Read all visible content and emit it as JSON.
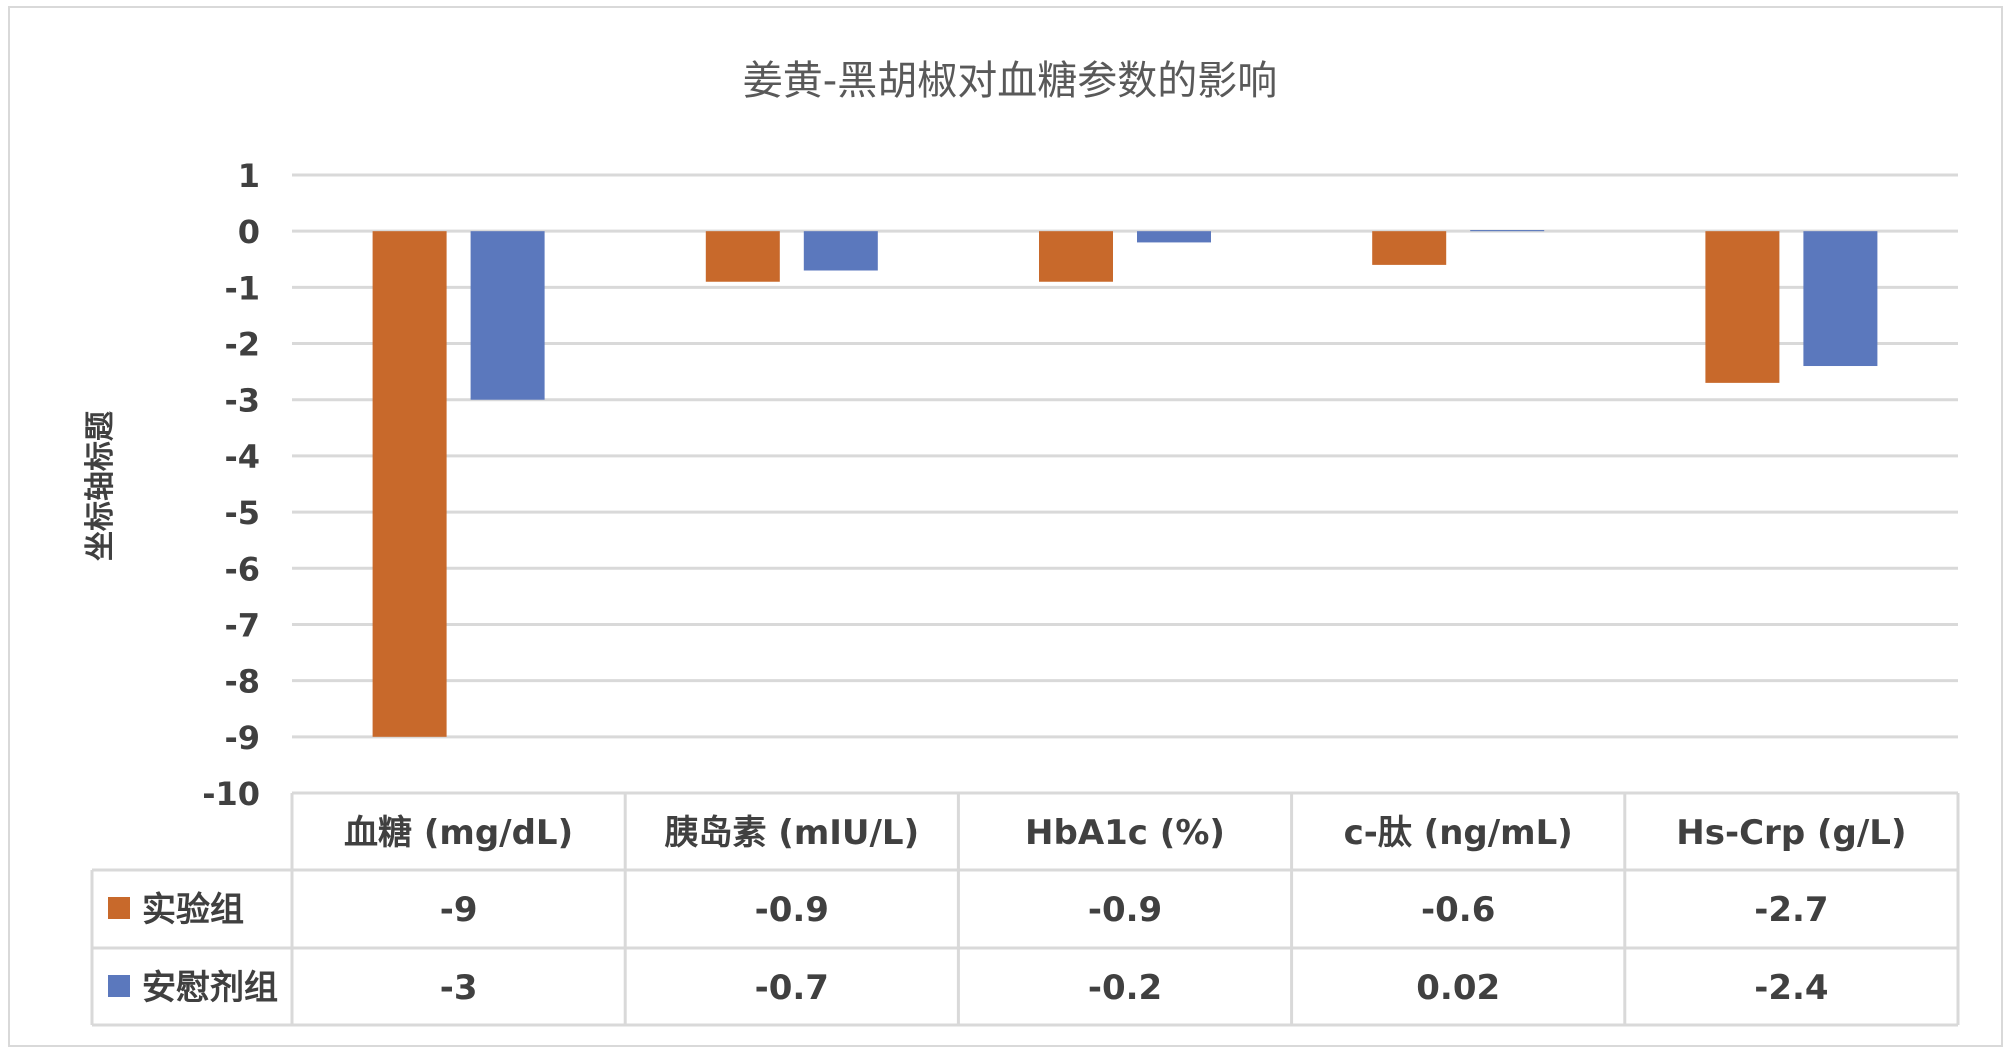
{
  "chart_data": {
    "type": "bar",
    "title": "姜黄-黑胡椒对血糖参数的影响",
    "ylabel": "坐标轴标题",
    "xlabel": "",
    "ylim": [
      -10,
      1
    ],
    "yticks": [
      1,
      0,
      -1,
      -2,
      -3,
      -4,
      -5,
      -6,
      -7,
      -8,
      -9,
      -10
    ],
    "grid": true,
    "legend_placement": "data-table",
    "categories": [
      "血糖 (mg/dL)",
      "胰岛素 (mIU/L)",
      "HbA1c (%)",
      "c-肽 (ng/mL)",
      "Hs-Crp (g/L)"
    ],
    "series": [
      {
        "name": "实验组",
        "color": "#c8692b",
        "values": [
          -9,
          -0.9,
          -0.9,
          -0.6,
          -2.7
        ],
        "labels": [
          "-9",
          "-0.9",
          "-0.9",
          "-0.6",
          "-2.7"
        ]
      },
      {
        "name": "安慰剂组",
        "color": "#5b78bd",
        "values": [
          -3,
          -0.7,
          -0.2,
          0.02,
          -2.4
        ],
        "labels": [
          "-3",
          "-0.7",
          "-0.2",
          "0.02",
          "-2.4"
        ]
      }
    ],
    "gridline_color": "#d9d9d9",
    "text_color": "#404040",
    "title_color": "#595959"
  }
}
